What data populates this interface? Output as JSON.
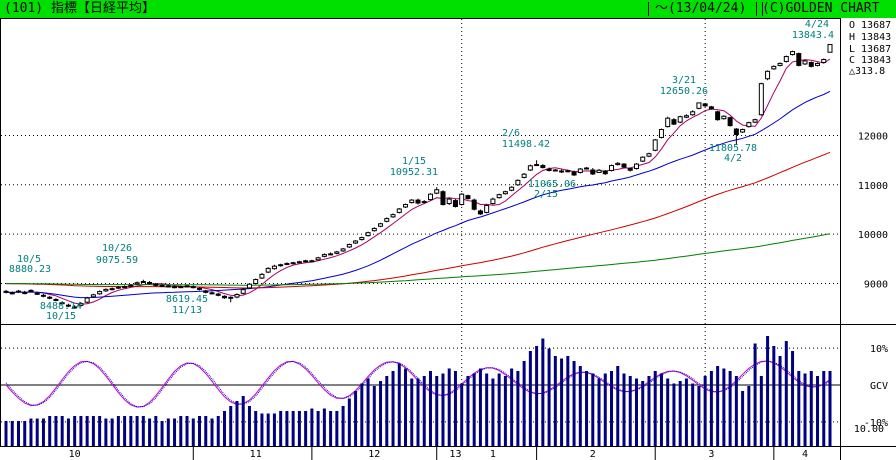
{
  "title": {
    "code": "(101)",
    "name": "指標【日経平均】",
    "date": "〜(13/04/24)",
    "brand": "(C)GOLDEN CHART"
  },
  "quote": {
    "open": "O 13687",
    "high": "H 13843",
    "low": "L 13687",
    "close": "C 13843",
    "change": "△313.8"
  },
  "colors": {
    "title_bar": "#00e000",
    "ma_short": "#aa0066",
    "ma_mid": "#0000cc",
    "ma_long": "#cc0000",
    "ma_xlong": "#008000",
    "volume": "#000080",
    "annotation": "#008080",
    "gcv_line": "#d000d0"
  },
  "chart_data": [
    {
      "type": "candlestick",
      "panel": "price",
      "title": "指標【日経平均】",
      "y_ticks": [
        "9000",
        "10000",
        "11000",
        "12000"
      ],
      "y_tick_values": [
        9000,
        10000,
        11000,
        12000
      ],
      "ylim": [
        8300,
        14300
      ],
      "x_labels": [
        "10",
        "11",
        "12",
        "13",
        "1",
        "2",
        "3",
        "4"
      ],
      "annotations": [
        {
          "text": "10/5",
          "value": 8880.23
        },
        {
          "text": "8880.23",
          "value": 8880.23
        },
        {
          "text": "8488.14",
          "value": 8488.14
        },
        {
          "text": "10/15",
          "value": 8488.14
        },
        {
          "text": "10/26",
          "value": 9075.59
        },
        {
          "text": "9075.59",
          "value": 9075.59
        },
        {
          "text": "8619.45",
          "value": 8619.45
        },
        {
          "text": "11/13",
          "value": 8619.45
        },
        {
          "text": "1/15",
          "value": 10952.31
        },
        {
          "text": "10952.31",
          "value": 10952.31
        },
        {
          "text": "2/6",
          "value": 11498.42
        },
        {
          "text": "11498.42",
          "value": 11498.42
        },
        {
          "text": "11065.06",
          "value": 11065.06
        },
        {
          "text": "2/15",
          "value": 11065.06
        },
        {
          "text": "3/21",
          "value": 12650.26
        },
        {
          "text": "12650.26",
          "value": 12650.26
        },
        {
          "text": "11805.78",
          "value": 11805.78
        },
        {
          "text": "4/2",
          "value": 11805.78
        },
        {
          "text": "4/24",
          "value": 13843.4
        },
        {
          "text": "13843.4",
          "value": 13843.4
        }
      ],
      "close": [
        8825,
        8810,
        8845,
        8800,
        8860,
        8785,
        8745,
        8700,
        8660,
        8595,
        8545,
        8510,
        8590,
        8705,
        8770,
        8835,
        8880,
        8895,
        8925,
        8935,
        8965,
        9015,
        9040,
        9000,
        8960,
        8955,
        8940,
        8925,
        8935,
        8950,
        8920,
        8880,
        8820,
        8805,
        8760,
        8710,
        8705,
        8775,
        8875,
        8985,
        9080,
        9185,
        9305,
        9350,
        9380,
        9405,
        9420,
        9440,
        9460,
        9455,
        9520,
        9585,
        9600,
        9640,
        9700,
        9790,
        9860,
        9930,
        10030,
        10115,
        10210,
        10315,
        10395,
        10510,
        10600,
        10690,
        10630,
        10660,
        10810,
        10900,
        10600,
        10710,
        10560,
        10810,
        10720,
        10505,
        10410,
        10580,
        10710,
        10800,
        10860,
        10950,
        11090,
        11215,
        11385,
        11410,
        11350,
        11290,
        11290,
        11265,
        11285,
        11200,
        11320,
        11340,
        11220,
        11295,
        11225,
        11390,
        11435,
        11360,
        11295,
        11420,
        11560,
        11630,
        11910,
        12120,
        12350,
        12230,
        12380,
        12400,
        12480,
        12660,
        12600,
        12540,
        12320,
        12390,
        12200,
        12020,
        12120,
        12260,
        12320,
        13050,
        13300,
        13400,
        13460,
        13600,
        13700,
        13420,
        13510,
        13400,
        13460,
        13540,
        13843
      ],
      "open": [
        8840,
        8800,
        8830,
        8815,
        8845,
        8800,
        8760,
        8720,
        8675,
        8610,
        8560,
        8525,
        8555,
        8620,
        8730,
        8790,
        8850,
        8875,
        8910,
        8930,
        8950,
        8990,
        9025,
        9020,
        8985,
        8960,
        8950,
        8935,
        8930,
        8940,
        8935,
        8900,
        8850,
        8810,
        8785,
        8740,
        8720,
        8725,
        8800,
        8910,
        9000,
        9110,
        9230,
        9300,
        9360,
        9390,
        9410,
        9430,
        9450,
        9460,
        9480,
        9550,
        9590,
        9610,
        9660,
        9740,
        9820,
        9890,
        9970,
        10070,
        10160,
        10260,
        10350,
        10440,
        10550,
        10640,
        10690,
        10640,
        10700,
        10830,
        10860,
        10620,
        10680,
        10600,
        10780,
        10690,
        10470,
        10440,
        10620,
        10740,
        10820,
        10890,
        11000,
        11150,
        11300,
        11395,
        11390,
        11320,
        11300,
        11280,
        11270,
        11260,
        11250,
        11330,
        11300,
        11250,
        11280,
        11290,
        11410,
        11420,
        11330,
        11330,
        11480,
        11580,
        11700,
        11960,
        12180,
        12320,
        12270,
        12370,
        12420,
        12550,
        12640,
        12580,
        12480,
        12340,
        12360,
        12130,
        12070,
        12180,
        12270,
        12420,
        13150,
        13350,
        13420,
        13500,
        13640,
        13660,
        13450,
        13480,
        13420,
        13480,
        13687
      ],
      "high": [
        8870,
        8840,
        8870,
        8850,
        8880,
        8830,
        8790,
        8750,
        8700,
        8640,
        8590,
        8560,
        8620,
        8730,
        8790,
        8860,
        8900,
        8920,
        8950,
        8960,
        8990,
        9040,
        9076,
        9050,
        9010,
        8985,
        8970,
        8960,
        8960,
        8970,
        8960,
        8930,
        8870,
        8840,
        8810,
        8760,
        8740,
        8800,
        8900,
        9010,
        9100,
        9210,
        9330,
        9380,
        9400,
        9430,
        9440,
        9460,
        9480,
        9480,
        9540,
        9610,
        9630,
        9660,
        9720,
        9810,
        9880,
        9950,
        10050,
        10140,
        10230,
        10340,
        10420,
        10530,
        10620,
        10710,
        10720,
        10690,
        10830,
        10952,
        10890,
        10740,
        10710,
        10830,
        10800,
        10720,
        10500,
        10600,
        10740,
        10820,
        10880,
        10970,
        11110,
        11240,
        11410,
        11498,
        11420,
        11350,
        11320,
        11310,
        11310,
        11290,
        11340,
        11360,
        11340,
        11320,
        11300,
        11410,
        11460,
        11440,
        11350,
        11440,
        11580,
        11650,
        11930,
        12140,
        12380,
        12350,
        12400,
        12430,
        12510,
        12650,
        12660,
        12600,
        12500,
        12410,
        12380,
        12150,
        12140,
        12280,
        12340,
        13070,
        13320,
        13420,
        13480,
        13620,
        13720,
        13680,
        13530,
        13500,
        13480,
        13560,
        13843
      ],
      "low": [
        8800,
        8780,
        8810,
        8780,
        8830,
        8770,
        8720,
        8680,
        8640,
        8580,
        8520,
        8488,
        8540,
        8600,
        8710,
        8770,
        8830,
        8860,
        8890,
        8910,
        8930,
        8980,
        9010,
        8980,
        8940,
        8930,
        8920,
        8900,
        8910,
        8920,
        8900,
        8860,
        8800,
        8780,
        8740,
        8690,
        8619,
        8700,
        8780,
        8890,
        8980,
        9090,
        9210,
        9280,
        9340,
        9370,
        9390,
        9410,
        9430,
        9430,
        9460,
        9530,
        9570,
        9590,
        9640,
        9720,
        9800,
        9870,
        9950,
        10050,
        10140,
        10240,
        10330,
        10420,
        10530,
        10620,
        10600,
        10620,
        10680,
        10810,
        10580,
        10590,
        10540,
        10580,
        10700,
        10480,
        10390,
        10420,
        10600,
        10720,
        10800,
        10870,
        10980,
        11130,
        11280,
        11380,
        11330,
        11270,
        11270,
        11240,
        11250,
        11180,
        11230,
        11310,
        11200,
        11240,
        11200,
        11270,
        11390,
        11340,
        11270,
        11310,
        11460,
        11560,
        11680,
        11940,
        12160,
        12210,
        12250,
        12350,
        12400,
        12530,
        12580,
        12520,
        12300,
        12320,
        12180,
        11805,
        12050,
        12160,
        12250,
        12400,
        13120,
        13330,
        13400,
        13480,
        13620,
        13400,
        13430,
        13380,
        13400,
        13460,
        13687
      ]
    },
    {
      "type": "line",
      "panel": "gcv",
      "title": "",
      "y_ticks": [
        "10%",
        "GCV",
        "-10%"
      ],
      "y_tick_values": [
        10,
        0,
        -10
      ],
      "ylim": [
        -16,
        16
      ],
      "series": [
        {
          "name": "GCV",
          "values": [
            0.0,
            -1.9,
            -3.6,
            -4.9,
            -5.6,
            -5.4,
            -4.5,
            -2.9,
            -0.8,
            1.5,
            3.6,
            5.3,
            6.3,
            6.4,
            5.8,
            4.4,
            2.4,
            0.2,
            -2.1,
            -4.0,
            -5.4,
            -6.0,
            -5.8,
            -4.7,
            -2.9,
            -0.7,
            1.6,
            3.7,
            5.2,
            6.0,
            5.8,
            4.8,
            3.1,
            1.0,
            -1.2,
            -3.2,
            -4.6,
            -5.3,
            -5.1,
            -4.1,
            -2.4,
            -0.3,
            1.9,
            3.9,
            5.4,
            6.3,
            6.4,
            5.7,
            4.4,
            2.6,
            0.6,
            -1.3,
            -2.8,
            -3.6,
            -3.6,
            -2.9,
            -1.5,
            0.3,
            2.3,
            4.1,
            5.4,
            6.2,
            6.3,
            5.8,
            4.6,
            3.0,
            1.2,
            -0.5,
            -1.9,
            -2.7,
            -2.8,
            -2.3,
            -1.2,
            0.3,
            1.8,
            3.2,
            4.2,
            4.7,
            4.6,
            3.9,
            2.8,
            1.5,
            0.1,
            -1.1,
            -2.0,
            -2.4,
            -2.2,
            -1.4,
            -0.3,
            1.0,
            2.2,
            3.1,
            3.5,
            3.4,
            2.8,
            1.8,
            0.6,
            -0.5,
            -1.4,
            -1.8,
            -1.8,
            -1.2,
            -0.3,
            0.9,
            2.1,
            3.1,
            3.7,
            3.8,
            3.4,
            2.5,
            1.3,
            0.0,
            -1.1,
            -1.8,
            -1.9,
            -1.4,
            -0.3,
            1.2,
            2.9,
            4.5,
            5.7,
            6.4,
            6.5,
            6.0,
            5.0,
            3.6,
            2.1,
            0.8,
            -0.2,
            -0.6,
            -0.4,
            0.3,
            1.5
          ]
        },
        {
          "name": "GCV2",
          "values": [
            0.6,
            -1.3,
            -3.1,
            -4.5,
            -5.4,
            -5.5,
            -4.8,
            -3.4,
            -1.4,
            0.9,
            3.0,
            4.8,
            6.0,
            6.4,
            6.0,
            4.9,
            3.0,
            0.8,
            -1.5,
            -3.5,
            -5.1,
            -5.9,
            -5.9,
            -5.1,
            -3.5,
            -1.3,
            1.0,
            3.1,
            4.8,
            5.8,
            5.9,
            5.2,
            3.7,
            1.7,
            -0.5,
            -2.6,
            -4.2,
            -5.1,
            -5.2,
            -4.5,
            -3.0,
            -0.9,
            1.3,
            3.3,
            5.0,
            6.1,
            6.4,
            6.0,
            4.9,
            3.1,
            1.2,
            -0.7,
            -2.3,
            -3.4,
            -3.7,
            -3.2,
            -2.0,
            -0.3,
            1.7,
            3.6,
            5.0,
            6.0,
            6.3,
            6.0,
            5.0,
            3.5,
            1.8,
            0.0,
            -1.5,
            -2.5,
            -2.9,
            -2.6,
            -1.6,
            -0.2,
            1.4,
            2.8,
            3.9,
            4.6,
            4.7,
            4.2,
            3.2,
            1.9,
            0.6,
            -0.7,
            -1.7,
            -2.3,
            -2.3,
            -1.7,
            -0.7,
            0.6,
            1.8,
            2.8,
            3.4,
            3.5,
            3.0,
            2.1,
            1.0,
            -0.2,
            -1.1,
            -1.7,
            -1.8,
            -1.4,
            -0.6,
            0.5,
            1.7,
            2.8,
            3.5,
            3.8,
            3.5,
            2.8,
            1.7,
            0.4,
            -0.7,
            -1.6,
            -1.9,
            -1.6,
            -0.7,
            0.7,
            2.3,
            4.0,
            5.3,
            6.2,
            6.5,
            6.2,
            5.3,
            4.1,
            2.6,
            1.2,
            0.1,
            -0.5,
            -0.5,
            0.1,
            1.1
          ]
        }
      ]
    },
    {
      "type": "bar",
      "panel": "volume",
      "title": "",
      "y_ticks": [
        "10.00"
      ],
      "y_tick_values": [
        10
      ],
      "ylim": [
        0,
        48
      ],
      "series": [
        {
          "name": "volume",
          "values": [
            10,
            10,
            10,
            10,
            11,
            11,
            11,
            12,
            12,
            12,
            11,
            12,
            12,
            12,
            12,
            12,
            11,
            11,
            12,
            12,
            12,
            12,
            12,
            11,
            12,
            10,
            11,
            11,
            12,
            12,
            11,
            12,
            12,
            11,
            12,
            14,
            16,
            18,
            20,
            16,
            14,
            13,
            13,
            13,
            14,
            14,
            14,
            14,
            14,
            15,
            14,
            15,
            14,
            14,
            16,
            19,
            22,
            25,
            27,
            24,
            26,
            28,
            30,
            33,
            31,
            27,
            27,
            28,
            30,
            28,
            29,
            31,
            30,
            25,
            28,
            29,
            31,
            29,
            27,
            29,
            28,
            31,
            30,
            34,
            38,
            40,
            43,
            39,
            36,
            35,
            36,
            34,
            32,
            30,
            29,
            27,
            29,
            30,
            32,
            29,
            28,
            27,
            26,
            28,
            30,
            29,
            27,
            25,
            26,
            27,
            25,
            24,
            28,
            30,
            32,
            31,
            30,
            28,
            22,
            24,
            41,
            28,
            44,
            40,
            36,
            42,
            38,
            30,
            29,
            30,
            28,
            30,
            30
          ]
        }
      ]
    }
  ]
}
